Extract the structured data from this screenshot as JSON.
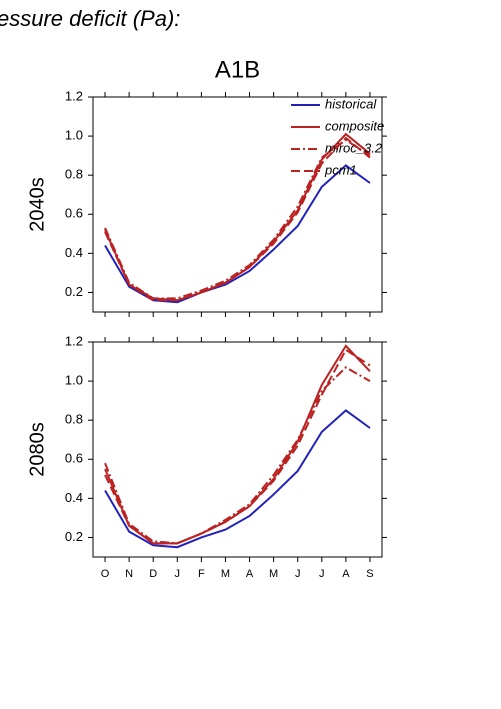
{
  "title": "essure deficit (Pa):",
  "chart_data": [
    {
      "type": "line",
      "title": "A1B",
      "ylabel": "2040s",
      "ylim": [
        0.1,
        1.2
      ],
      "yticks": [
        0.2,
        0.4,
        0.6,
        0.8,
        {
          "value": 1,
          "label": "1.0"
        },
        1.2
      ],
      "legend": "upper right",
      "series": [
        {
          "name": "historical",
          "color": "#2222bb",
          "dash": "solid",
          "values": [
            0.44,
            0.23,
            0.16,
            0.15,
            0.2,
            0.24,
            0.31,
            0.42,
            0.54,
            0.74,
            0.85,
            0.76
          ]
        },
        {
          "name": "composite",
          "color": "#bb2222",
          "dash": "solid",
          "values": [
            0.52,
            0.24,
            0.17,
            0.16,
            0.2,
            0.25,
            0.33,
            0.46,
            0.62,
            0.88,
            1.01,
            0.91
          ]
        },
        {
          "name": "miroc_3.2",
          "color": "#bb2222",
          "dash": "dashdot",
          "values": [
            0.53,
            0.25,
            0.17,
            0.17,
            0.21,
            0.26,
            0.34,
            0.47,
            0.64,
            0.89,
            0.98,
            0.9
          ]
        },
        {
          "name": "pcm1",
          "color": "#bb2222",
          "dash": "dash",
          "values": [
            0.51,
            0.24,
            0.16,
            0.16,
            0.2,
            0.25,
            0.33,
            0.45,
            0.61,
            0.86,
            0.99,
            0.89
          ]
        }
      ]
    },
    {
      "type": "line",
      "ylabel": "2080s",
      "categories": [
        "O",
        "N",
        "D",
        "J",
        "F",
        "M",
        "A",
        "M",
        "J",
        "J",
        "A",
        "S"
      ],
      "ylim": [
        0.1,
        1.2
      ],
      "yticks": [
        0.2,
        0.4,
        0.6,
        0.8,
        {
          "value": 1,
          "label": "1.0"
        },
        1.2
      ],
      "series": [
        {
          "color": "#2222bb",
          "dash": "solid",
          "values": [
            0.44,
            0.23,
            0.16,
            0.15,
            0.2,
            0.24,
            0.31,
            0.42,
            0.54,
            0.74,
            0.85,
            0.76
          ]
        },
        {
          "color": "#bb2222",
          "dash": "solid",
          "values": [
            0.55,
            0.26,
            0.17,
            0.17,
            0.22,
            0.28,
            0.36,
            0.5,
            0.69,
            0.98,
            1.18,
            1.05
          ]
        },
        {
          "color": "#bb2222",
          "dash": "dashdot",
          "values": [
            0.58,
            0.27,
            0.18,
            0.17,
            0.22,
            0.29,
            0.37,
            0.52,
            0.7,
            0.95,
            1.07,
            1.0
          ]
        },
        {
          "color": "#bb2222",
          "dash": "dash",
          "values": [
            0.52,
            0.26,
            0.17,
            0.17,
            0.22,
            0.28,
            0.36,
            0.49,
            0.67,
            0.93,
            1.16,
            1.08
          ]
        }
      ]
    }
  ]
}
